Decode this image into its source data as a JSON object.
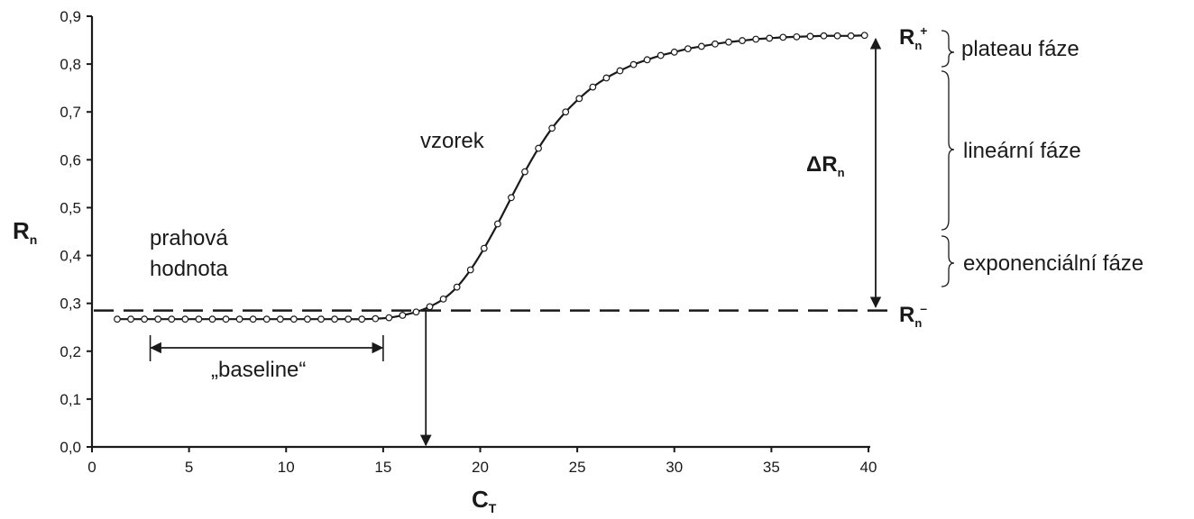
{
  "chart_data": {
    "type": "line",
    "title": "",
    "xlabel": "C",
    "xlabel_sub": "T",
    "ylabel": "R",
    "ylabel_sub": "n",
    "xlim": [
      0,
      40
    ],
    "ylim": [
      0.0,
      0.9
    ],
    "x_ticks": [
      0,
      5,
      10,
      15,
      20,
      25,
      30,
      35,
      40
    ],
    "x_tick_labels": [
      "0",
      "5",
      "10",
      "15",
      "20",
      "25",
      "30",
      "35",
      "40"
    ],
    "y_ticks": [
      0.0,
      0.1,
      0.2,
      0.3,
      0.4,
      0.5,
      0.6,
      0.7,
      0.8,
      0.9
    ],
    "y_tick_labels": [
      "0,0",
      "0,1",
      "0,2",
      "0,3",
      "0,4",
      "0,5",
      "0,6",
      "0,7",
      "0,8",
      "0,9"
    ],
    "grid": false,
    "threshold": 0.285,
    "ct": 17.2,
    "baseline_range": [
      3,
      15
    ],
    "series": [
      {
        "x": [
          1.3,
          2.0,
          2.7,
          3.4,
          4.1,
          4.8,
          5.5,
          6.2,
          6.9,
          7.6,
          8.3,
          9.0,
          9.7,
          10.4,
          11.1,
          11.8,
          12.5,
          13.2,
          13.9,
          14.6,
          15.3,
          16.0,
          16.7,
          17.4,
          18.1,
          18.8,
          19.5,
          20.2,
          20.9,
          21.6,
          22.3,
          23.0,
          23.7,
          24.4,
          25.1,
          25.8,
          26.5,
          27.2,
          27.9,
          28.6,
          29.3,
          30.0,
          30.7,
          31.4,
          32.1,
          32.8,
          33.5,
          34.2,
          34.9,
          35.6,
          36.3,
          37.0,
          37.7,
          38.4,
          39.1,
          39.8
        ],
        "y": [
          0.267,
          0.267,
          0.267,
          0.267,
          0.267,
          0.267,
          0.267,
          0.267,
          0.267,
          0.267,
          0.267,
          0.267,
          0.267,
          0.267,
          0.267,
          0.267,
          0.267,
          0.267,
          0.267,
          0.268,
          0.27,
          0.275,
          0.282,
          0.293,
          0.309,
          0.334,
          0.37,
          0.415,
          0.466,
          0.521,
          0.575,
          0.624,
          0.666,
          0.7,
          0.728,
          0.752,
          0.771,
          0.786,
          0.799,
          0.809,
          0.818,
          0.825,
          0.832,
          0.837,
          0.842,
          0.846,
          0.849,
          0.852,
          0.854,
          0.856,
          0.857,
          0.858,
          0.859,
          0.859,
          0.859,
          0.86
        ]
      }
    ],
    "annotations": {
      "sample": "vzorek",
      "threshold": "prahová\nhodnota",
      "baseline": "„baseline“",
      "delta": "ΔR",
      "delta_sub": "n",
      "r_plus": "R",
      "r_plus_sub": "n",
      "r_plus_sup": "+",
      "r_minus": "R",
      "r_minus_sub": "n",
      "r_minus_sup": "–",
      "plateau": "plateau fáze",
      "linear": "lineární fáze",
      "exponential": "exponenciální fáze"
    }
  }
}
